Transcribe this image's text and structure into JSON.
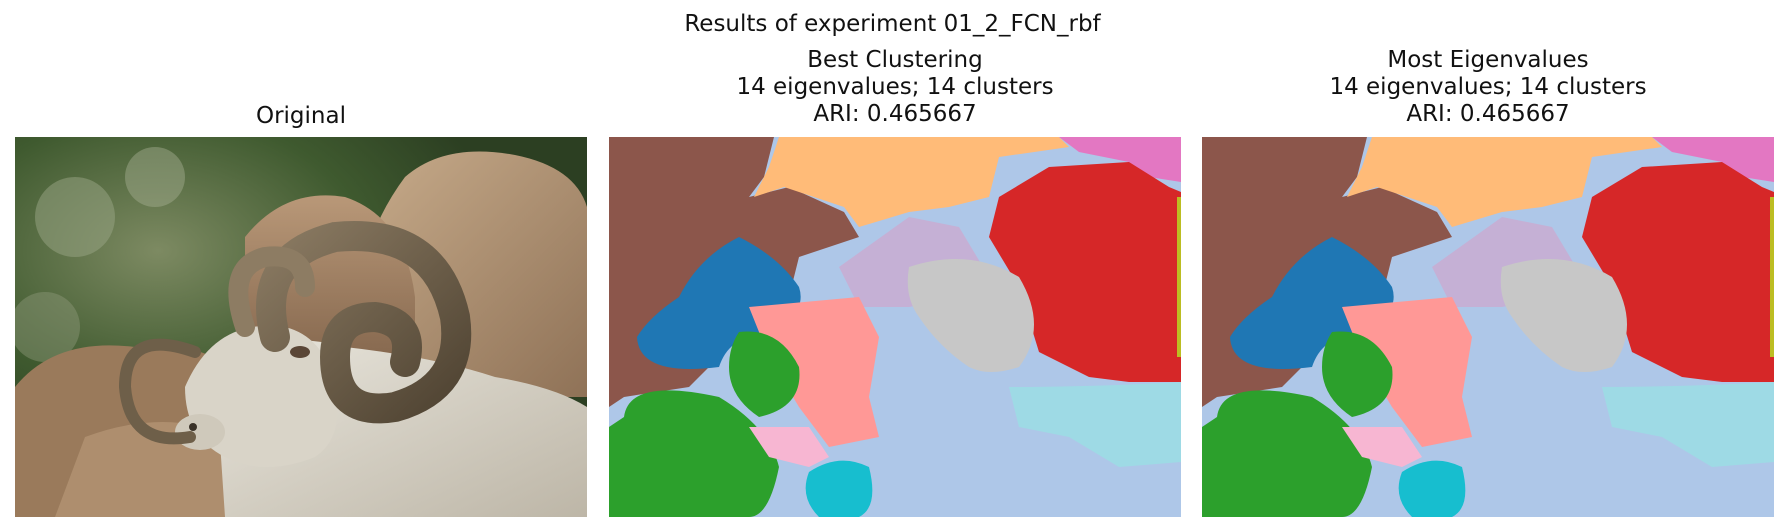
{
  "figure": {
    "suptitle": "Results of experiment 01_2_FCN_rbf"
  },
  "panels": [
    {
      "title_lines": [
        "Original"
      ],
      "content": "photo of a ram with curled horns in front of rocks and trees"
    },
    {
      "title_lines": [
        "Best Clustering",
        "14 eigenvalues; 14 clusters",
        "ARI: 0.465667"
      ],
      "content": "segmentation map"
    },
    {
      "title_lines": [
        "Most Eigenvalues",
        "14 eigenvalues; 14 clusters",
        "ARI: 0.465667"
      ],
      "content": "segmentation map"
    }
  ],
  "palette": {
    "brown": "#8c564b",
    "orange_light": "#ffbb78",
    "pink": "#e377c2",
    "red": "#d62728",
    "blue": "#1f77b4",
    "blue_light": "#aec7e8",
    "purple_light": "#c5b0d5",
    "gray_light": "#c7c7c7",
    "salmon": "#ff9896",
    "green": "#2ca02c",
    "pink_light": "#f7b6d2",
    "cyan": "#17becf",
    "cyan_light": "#9edae5",
    "yellow": "#bcbd22"
  }
}
